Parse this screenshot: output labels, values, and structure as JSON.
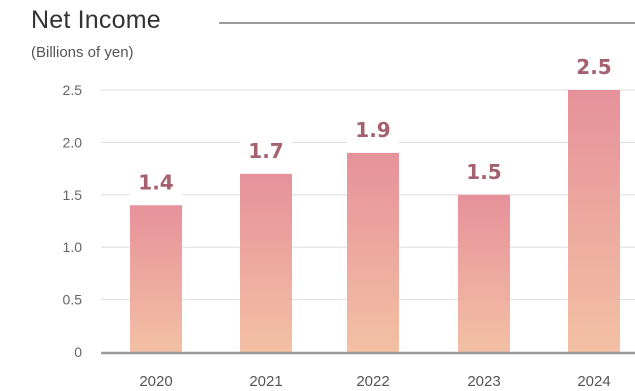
{
  "chart_data": {
    "type": "bar",
    "title": "Net Income",
    "subtitle": "(Billions of yen)",
    "categories": [
      "2020",
      "2021",
      "2022",
      "2023",
      "2024"
    ],
    "values": [
      1.4,
      1.7,
      1.9,
      1.5,
      2.5
    ],
    "data_labels": [
      "1.4",
      "1.7",
      "1.9",
      "1.5",
      "2.5"
    ],
    "y_ticks": [
      0,
      0.5,
      1.0,
      1.5,
      2.0,
      2.5
    ],
    "y_tick_labels": [
      "0",
      "0.5",
      "1.0",
      "1.5",
      "2.0",
      "2.5"
    ],
    "ylim": [
      0,
      2.5
    ],
    "xlabel": "",
    "ylabel": "",
    "grid": true,
    "legend": "none",
    "colors": {
      "bar_top": "#e6919a",
      "bar_bottom": "#f3c0a4",
      "data_label": "#a56170",
      "grid": "#dddddd",
      "axis": "#9a9a9a"
    }
  }
}
